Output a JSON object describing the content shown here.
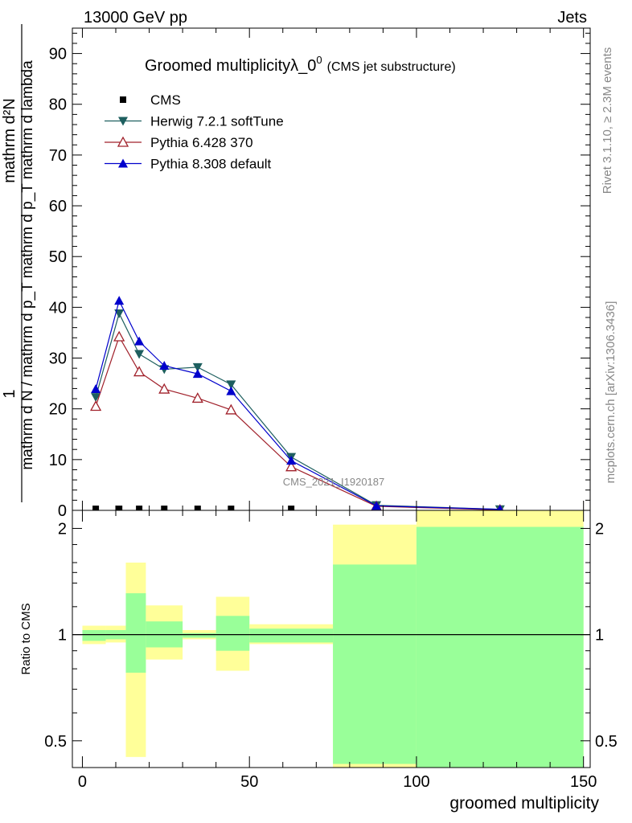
{
  "header": {
    "energy_label": "13000 GeV pp",
    "process_label": "Jets"
  },
  "side_labels": {
    "rivet": "Rivet 3.1.10, ≥ 2.3M events",
    "mcplots": "mcplots.cern.ch [arXiv:1306.3436]"
  },
  "watermark": "CMS_2021_I1920187",
  "colors": {
    "cms": "#000000",
    "herwig": "#1e5f5f",
    "pythia6": "#a0202a",
    "pythia8": "#0000cc",
    "band_outer": "#ffff99",
    "band_inner": "#99ff99"
  },
  "chart_data": [
    {
      "type": "line",
      "title": "Groomed multiplicityλ_0",
      "title_sup": "0",
      "title_suffix": "(CMS jet substructure)",
      "ylabel_numerator": "1",
      "ylabel_denominator": "mathrm d N / mathrm d p_T mathrm d p_T mathrm d lambda",
      "ylabel_top": "mathrm d²N",
      "ylim": [
        0,
        95
      ],
      "yticks": [
        "0",
        "10",
        "20",
        "30",
        "40",
        "50",
        "60",
        "70",
        "80",
        "90"
      ],
      "xlim": [
        -3,
        152
      ],
      "x": [
        4,
        11,
        17,
        24.5,
        34.5,
        44.5,
        62.5,
        88,
        125
      ],
      "series": [
        {
          "name": "CMS",
          "key": "cms",
          "marker": "square",
          "values": [
            0.3,
            0.3,
            0.3,
            0.3,
            0.3,
            0.3,
            0.3,
            null,
            null
          ]
        },
        {
          "name": "Herwig 7.2.1 softTune",
          "key": "herwig",
          "marker": "tri-down",
          "values": [
            22.3,
            38.8,
            30.8,
            27.8,
            28.2,
            24.8,
            10.5,
            1.0,
            0.2
          ]
        },
        {
          "name": "Pythia 6.428 370",
          "key": "pythia6",
          "marker": "tri-up-open",
          "values": [
            20.5,
            34.2,
            27.3,
            23.9,
            22.1,
            19.8,
            8.6,
            0.8,
            0.1
          ]
        },
        {
          "name": "Pythia 8.308 default",
          "key": "pythia8",
          "marker": "tri-up",
          "values": [
            23.9,
            41.3,
            33.3,
            28.5,
            26.9,
            23.5,
            9.8,
            0.9,
            0.2
          ]
        }
      ]
    },
    {
      "type": "area",
      "ylabel": "Ratio to CMS",
      "xlabel": "groomed multiplicity",
      "ylim": [
        0.42,
        2.25
      ],
      "xlim": [
        -3,
        152
      ],
      "xticks": [
        "0",
        "50",
        "100",
        "150"
      ],
      "yticks": [
        "0.5",
        "1",
        "2"
      ],
      "bins": [
        {
          "lo": 0,
          "hi": 7,
          "inner": [
            0.96,
            1.03
          ],
          "outer": [
            0.94,
            1.06
          ]
        },
        {
          "lo": 7,
          "hi": 13,
          "inner": [
            0.97,
            1.03
          ],
          "outer": [
            0.95,
            1.06
          ]
        },
        {
          "lo": 13,
          "hi": 19,
          "inner": [
            0.78,
            1.31
          ],
          "outer": [
            0.45,
            1.6
          ]
        },
        {
          "lo": 19,
          "hi": 30,
          "inner": [
            0.92,
            1.09
          ],
          "outer": [
            0.85,
            1.21
          ]
        },
        {
          "lo": 30,
          "hi": 40,
          "inner": [
            0.98,
            1.01
          ],
          "outer": [
            0.97,
            1.03
          ]
        },
        {
          "lo": 40,
          "hi": 50,
          "inner": [
            0.9,
            1.13
          ],
          "outer": [
            0.79,
            1.28
          ]
        },
        {
          "lo": 50,
          "hi": 75,
          "inner": [
            0.95,
            1.04
          ],
          "outer": [
            0.94,
            1.07
          ]
        },
        {
          "lo": 75,
          "hi": 100,
          "inner": [
            0.43,
            1.58
          ],
          "outer": [
            0.4,
            2.05
          ]
        },
        {
          "lo": 100,
          "hi": 150,
          "inner": [
            0.4,
            2.02
          ],
          "outer": [
            0.4,
            2.3
          ]
        }
      ]
    }
  ]
}
